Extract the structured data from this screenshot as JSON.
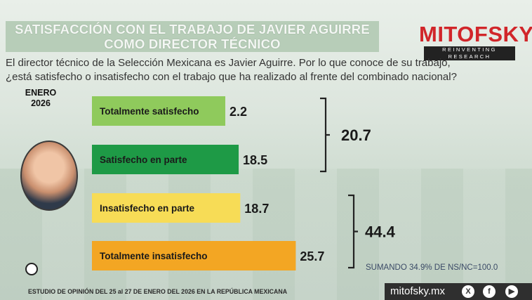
{
  "title_line1": "SATISFACCIÓN CON EL TRABAJO DE JAVIER AGUIRRE",
  "title_line2": "COMO DIRECTOR TÉCNICO",
  "logo": {
    "main": "MITOFSKY",
    "sub": "REINVENTING RESEARCH"
  },
  "question_line1": "El director técnico de la Selección Mexicana es Javier Aguirre. Por lo que conoce de su trabajo,",
  "question_line2": "¿está satisfecho o insatisfecho con el trabajo que ha realizado al frente del combinado nacional?",
  "period_line1": "ENERO",
  "period_line2": "2026",
  "chart_data": {
    "type": "bar",
    "orientation": "horizontal",
    "categories": [
      "Totalmente satisfecho",
      "Satisfecho en parte",
      "Insatisfecho en parte",
      "Totalmente insatisfecho"
    ],
    "values": [
      2.2,
      18.5,
      18.7,
      25.7
    ],
    "value_labels": [
      "2.2",
      "18.5",
      "18.7",
      "25.7"
    ],
    "bar_colors": [
      "#8fca5c",
      "#1e9a46",
      "#f7dc56",
      "#f3a623"
    ],
    "groups": [
      {
        "label": "20.7",
        "members": [
          0,
          1
        ]
      },
      {
        "label": "44.4",
        "members": [
          2,
          3
        ]
      }
    ],
    "grid": false
  },
  "note": "SUMANDO 34.9% DE NS/NC=100.0",
  "footer": "ESTUDIO DE OPINIÓN DEL 25 al 27 DE ENERO DEL 2026 EN LA REPÚBLICA MEXICANA",
  "site": "mitofsky.mx",
  "social": [
    "x-icon",
    "facebook-icon",
    "youtube-icon"
  ]
}
